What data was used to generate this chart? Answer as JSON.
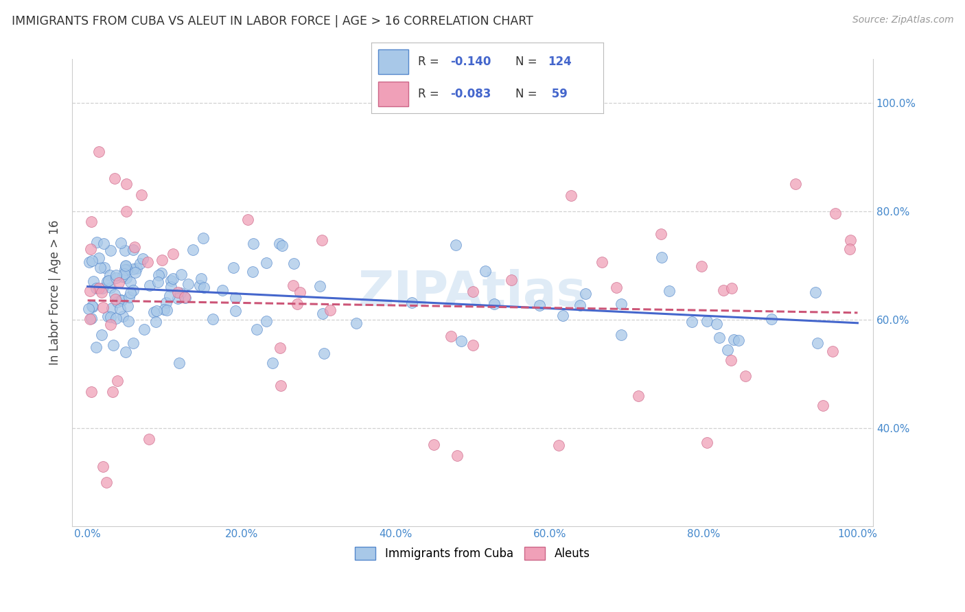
{
  "title": "IMMIGRANTS FROM CUBA VS ALEUT IN LABOR FORCE | AGE > 16 CORRELATION CHART",
  "source": "Source: ZipAtlas.com",
  "ylabel": "In Labor Force | Age > 16",
  "blue_color": "#a8c8e8",
  "blue_edge": "#5588cc",
  "pink_color": "#f0a0b8",
  "pink_edge": "#cc6688",
  "trendline_blue": "#4466cc",
  "trendline_pink": "#cc5577",
  "background_color": "#ffffff",
  "grid_color": "#cccccc",
  "axis_color": "#4488cc",
  "watermark": "ZIPAtlas",
  "legend_R_blue": "-0.140",
  "legend_N_blue": "124",
  "legend_R_pink": "-0.083",
  "legend_N_pink": "59",
  "legend_label_blue": "Immigrants from Cuba",
  "legend_label_pink": "Aleuts",
  "x_ticks": [
    0,
    20,
    40,
    60,
    80,
    100
  ],
  "x_tick_labels": [
    "0.0%",
    "20.0%",
    "40.0%",
    "60.0%",
    "80.0%",
    "100.0%"
  ],
  "y_ticks": [
    40,
    60,
    80,
    100
  ],
  "y_tick_labels": [
    "40.0%",
    "60.0%",
    "80.0%",
    "100.0%"
  ],
  "xlim": [
    -2,
    102
  ],
  "ylim": [
    22,
    108
  ]
}
